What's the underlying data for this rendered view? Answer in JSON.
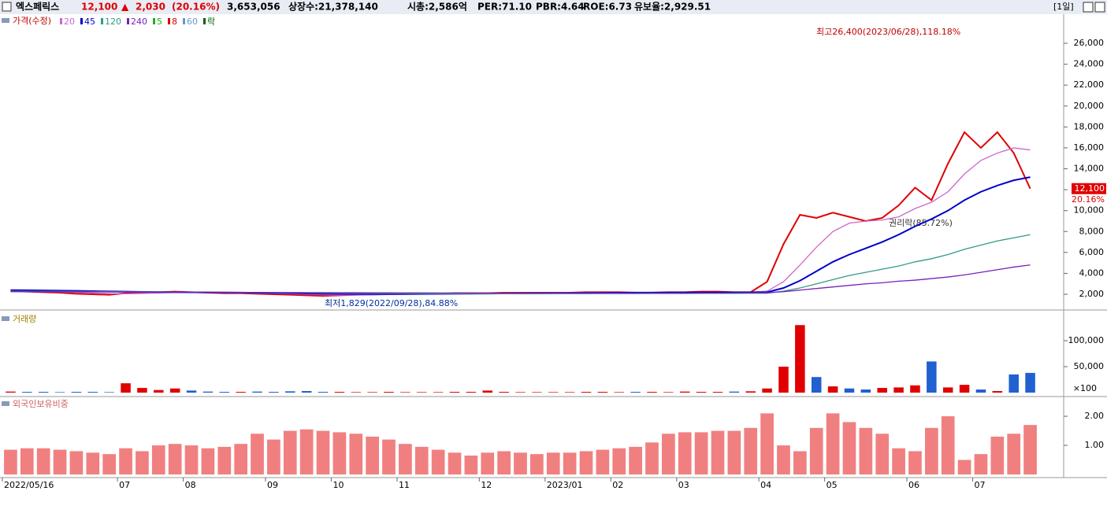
{
  "header": {
    "name": "엑스페릭스",
    "price": "12,100",
    "arrow": "▲",
    "change": "2,030",
    "change_pct": "(20.16%)",
    "volume": "3,653,056",
    "listed": "상장수:21,378,140",
    "market_cap": "시총:2,586억",
    "per": "PER:71.10",
    "pbr": "PBR:4.64",
    "roe": "ROE:6.73",
    "reserve": "유보율:2,929.51",
    "period": "[1일]"
  },
  "chart_data": [
    {
      "type": "line",
      "title": "가격(수정)",
      "legend_extra": [
        {
          "label": "5",
          "color": "#22aa22"
        },
        {
          "label": "8",
          "color": "#dd0000"
        },
        {
          "label": "60",
          "color": "#6699cc"
        },
        {
          "label": "락",
          "color": "#006600"
        }
      ],
      "categories": [
        "2022/05/16",
        null,
        null,
        null,
        null,
        null,
        null,
        "07",
        null,
        null,
        null,
        "08",
        null,
        null,
        null,
        null,
        "09",
        null,
        null,
        null,
        "10",
        null,
        null,
        null,
        "11",
        null,
        null,
        null,
        null,
        "12",
        null,
        null,
        null,
        "2023/01",
        null,
        null,
        null,
        "02",
        null,
        null,
        null,
        "03",
        null,
        null,
        null,
        null,
        "04",
        null,
        null,
        null,
        "05",
        null,
        null,
        null,
        null,
        "06",
        null,
        null,
        null,
        "07",
        null,
        null,
        null
      ],
      "series": [
        {
          "name": "가격(수정)",
          "color": "#e00000",
          "values": [
            2300,
            2250,
            2200,
            2150,
            2050,
            2000,
            1950,
            2100,
            2150,
            2200,
            2250,
            2200,
            2150,
            2100,
            2100,
            2050,
            2000,
            1950,
            1900,
            1850,
            1900,
            1950,
            2000,
            2000,
            2050,
            2050,
            2050,
            2100,
            2100,
            2100,
            2150,
            2150,
            2150,
            2150,
            2150,
            2200,
            2200,
            2200,
            2150,
            2150,
            2200,
            2200,
            2250,
            2250,
            2200,
            2200,
            3200,
            6800,
            9600,
            9300,
            9800,
            9400,
            9000,
            9300,
            10500,
            12200,
            11000,
            14500,
            17500,
            16000,
            17500,
            15500,
            12100
          ]
        },
        {
          "name": "20",
          "color": "#cc66cc",
          "values": [
            2300,
            2280,
            2250,
            2220,
            2180,
            2120,
            2060,
            2050,
            2080,
            2120,
            2170,
            2200,
            2190,
            2160,
            2130,
            2100,
            2070,
            2030,
            1990,
            1950,
            1920,
            1920,
            1940,
            1970,
            2000,
            2020,
            2040,
            2060,
            2080,
            2090,
            2110,
            2130,
            2140,
            2150,
            2150,
            2160,
            2170,
            2180,
            2180,
            2170,
            2170,
            2180,
            2190,
            2200,
            2210,
            2210,
            2300,
            3200,
            4800,
            6500,
            8000,
            8800,
            9000,
            9100,
            9400,
            10200,
            10800,
            11800,
            13500,
            14800,
            15500,
            16000,
            15800
          ]
        },
        {
          "name": "45",
          "color": "#0000cc",
          "values": [
            2400,
            2390,
            2370,
            2350,
            2330,
            2300,
            2270,
            2250,
            2230,
            2210,
            2200,
            2190,
            2180,
            2170,
            2160,
            2140,
            2120,
            2100,
            2080,
            2060,
            2040,
            2030,
            2020,
            2020,
            2020,
            2030,
            2040,
            2050,
            2060,
            2070,
            2080,
            2090,
            2100,
            2110,
            2120,
            2130,
            2140,
            2150,
            2160,
            2160,
            2170,
            2170,
            2180,
            2180,
            2190,
            2190,
            2200,
            2600,
            3300,
            4200,
            5100,
            5800,
            6400,
            7000,
            7700,
            8500,
            9200,
            10000,
            11000,
            11800,
            12400,
            12900,
            13200
          ]
        },
        {
          "name": "120",
          "color": "#339988",
          "values": [
            2300,
            2300,
            2290,
            2280,
            2270,
            2260,
            2250,
            2240,
            2230,
            2220,
            2210,
            2200,
            2190,
            2180,
            2170,
            2160,
            2150,
            2140,
            2130,
            2120,
            2110,
            2100,
            2090,
            2080,
            2070,
            2060,
            2050,
            2050,
            2050,
            2050,
            2050,
            2050,
            2050,
            2060,
            2060,
            2060,
            2070,
            2070,
            2070,
            2080,
            2080,
            2080,
            2090,
            2090,
            2090,
            2100,
            2100,
            2300,
            2600,
            3000,
            3400,
            3800,
            4100,
            4400,
            4700,
            5100,
            5400,
            5800,
            6300,
            6700,
            7100,
            7400,
            7700
          ]
        },
        {
          "name": "240",
          "color": "#7722bb",
          "values": [
            2250,
            2250,
            2240,
            2240,
            2230,
            2230,
            2220,
            2220,
            2210,
            2210,
            2200,
            2200,
            2190,
            2190,
            2180,
            2180,
            2170,
            2170,
            2160,
            2160,
            2150,
            2150,
            2140,
            2140,
            2130,
            2130,
            2120,
            2120,
            2110,
            2110,
            2110,
            2110,
            2110,
            2110,
            2110,
            2110,
            2110,
            2110,
            2110,
            2110,
            2110,
            2110,
            2120,
            2120,
            2130,
            2140,
            2150,
            2250,
            2400,
            2550,
            2700,
            2850,
            3000,
            3100,
            3250,
            3350,
            3500,
            3650,
            3850,
            4100,
            4350,
            4600,
            4800
          ]
        }
      ],
      "ylim": [
        571,
        28784
      ],
      "yticks": [
        {
          "value": 2000,
          "label": "2,000"
        },
        {
          "value": 4000,
          "label": "4,000"
        },
        {
          "value": 6000,
          "label": "6,000"
        },
        {
          "value": 8000,
          "label": "8,000"
        },
        {
          "value": 10000,
          "label": "10,000"
        },
        {
          "value": 12000,
          "label": "12,000"
        },
        {
          "value": 14000,
          "label": "14,000"
        },
        {
          "value": 16000,
          "label": "16,000"
        },
        {
          "value": 18000,
          "label": "18,000"
        },
        {
          "value": 20000,
          "label": "20,000"
        },
        {
          "value": 22000,
          "label": "22,000"
        },
        {
          "value": 24000,
          "label": "24,000"
        },
        {
          "value": 26000,
          "label": "26,000"
        }
      ],
      "last_price": {
        "value": 12100,
        "label": "12,100"
      },
      "last_pct": "20.16%",
      "annotations": [
        "최고26,400(2023/06/28),118.18%",
        "최저1,829(2022/09/28),84.88%",
        "권리락(85.72%)"
      ]
    },
    {
      "type": "bar",
      "title": "거래량",
      "unit": "×100",
      "up_color": "#e00000",
      "down_color": "#2060d0",
      "values": [
        2000,
        1500,
        1500,
        1000,
        1500,
        1500,
        1000,
        18000,
        9000,
        5000,
        8000,
        4000,
        2000,
        1500,
        1500,
        2000,
        1500,
        2500,
        3000,
        1500,
        1500,
        1000,
        1000,
        1500,
        1000,
        1000,
        1000,
        1500,
        1500,
        4000,
        1500,
        1000,
        1000,
        1000,
        1000,
        1500,
        1500,
        1000,
        1500,
        1500,
        1000,
        2000,
        1500,
        1500,
        2000,
        2500,
        8000,
        50000,
        130000,
        30000,
        12000,
        8000,
        6000,
        9000,
        10000,
        14000,
        60000,
        10000,
        15000,
        6000,
        3000,
        35000,
        38000
      ],
      "ylim": [
        -6060,
        154545
      ],
      "yticks": [
        {
          "value": 50000,
          "label": "50,000"
        },
        {
          "value": 100000,
          "label": "100,000"
        }
      ]
    },
    {
      "type": "bar",
      "title": "외국인보유비중",
      "color": "#f08080",
      "values": [
        0.85,
        0.9,
        0.9,
        0.85,
        0.8,
        0.75,
        0.7,
        0.9,
        0.8,
        1.0,
        1.05,
        1.0,
        0.9,
        0.95,
        1.05,
        1.4,
        1.2,
        1.5,
        1.55,
        1.5,
        1.45,
        1.4,
        1.3,
        1.2,
        1.05,
        0.95,
        0.85,
        0.75,
        0.65,
        0.75,
        0.8,
        0.75,
        0.7,
        0.75,
        0.75,
        0.8,
        0.85,
        0.9,
        0.95,
        1.1,
        1.4,
        1.45,
        1.45,
        1.5,
        1.5,
        1.6,
        2.1,
        1.0,
        0.8,
        1.6,
        2.1,
        1.8,
        1.6,
        1.4,
        0.9,
        0.8,
        1.6,
        2.0,
        0.5,
        0.7,
        1.3,
        1.4,
        1.7
      ],
      "ylim": [
        -0.08,
        2.65
      ],
      "yticks": [
        {
          "value": 1,
          "label": "1.00"
        },
        {
          "value": 2,
          "label": "2.00"
        }
      ]
    }
  ]
}
